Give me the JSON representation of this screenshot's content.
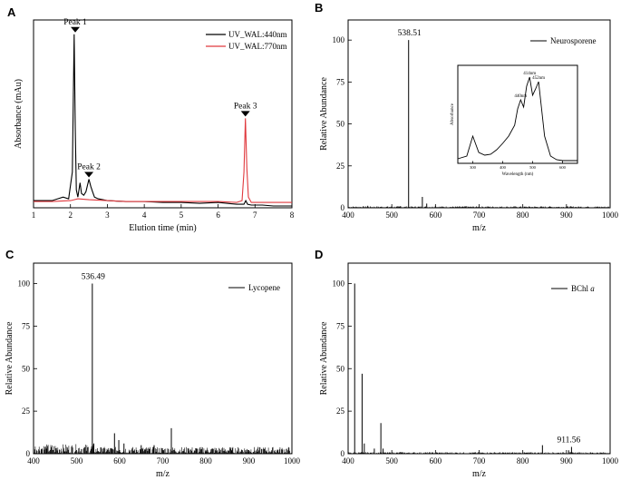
{
  "chart_data": [
    {
      "panel": "A",
      "type": "line",
      "xlabel": "Elution time (min)",
      "ylabel": "Absorbance (mAu)",
      "xlim": [
        1,
        8
      ],
      "x_ticks": [
        1,
        2,
        3,
        4,
        5,
        6,
        7,
        8
      ],
      "y_ticks": [],
      "legend_position": "top-right",
      "series": [
        {
          "name": "UV_WAL:440nm",
          "color": "#000000",
          "x": [
            1.0,
            1.5,
            1.8,
            1.95,
            2.05,
            2.1,
            2.13,
            2.16,
            2.2,
            2.26,
            2.3,
            2.36,
            2.42,
            2.5,
            2.55,
            2.6,
            2.65,
            2.75,
            3.0,
            3.5,
            4.0,
            4.5,
            5.0,
            5.5,
            6.0,
            6.5,
            6.7,
            6.75,
            6.8,
            6.9,
            7.2,
            7.5,
            7.8,
            8.0
          ],
          "y": [
            0.04,
            0.04,
            0.06,
            0.05,
            0.2,
            0.97,
            0.45,
            0.1,
            0.06,
            0.14,
            0.08,
            0.07,
            0.09,
            0.16,
            0.12,
            0.09,
            0.06,
            0.05,
            0.04,
            0.035,
            0.035,
            0.03,
            0.03,
            0.025,
            0.03,
            0.02,
            0.02,
            0.04,
            0.02,
            0.015,
            0.015,
            0.01,
            0.01,
            0.01
          ]
        },
        {
          "name": "UV_WAL:770nm",
          "color": "#e0393e",
          "x": [
            1.0,
            1.5,
            2.0,
            2.1,
            2.2,
            2.5,
            3.0,
            3.5,
            4.0,
            4.5,
            5.0,
            5.5,
            6.0,
            6.5,
            6.65,
            6.7,
            6.74,
            6.78,
            6.82,
            6.9,
            7.2,
            7.5,
            8.0
          ],
          "y": [
            0.035,
            0.035,
            0.04,
            0.045,
            0.05,
            0.045,
            0.04,
            0.035,
            0.035,
            0.035,
            0.035,
            0.035,
            0.035,
            0.03,
            0.04,
            0.2,
            0.5,
            0.22,
            0.06,
            0.03,
            0.03,
            0.03,
            0.03
          ]
        }
      ],
      "annotations": [
        {
          "text": "Peak 1",
          "x": 2.13,
          "y": 0.97
        },
        {
          "text": "Peak 2",
          "x": 2.5,
          "y": 0.16
        },
        {
          "text": "Peak 3",
          "x": 6.74,
          "y": 0.5
        }
      ]
    },
    {
      "panel": "B",
      "type": "bar",
      "xlabel": "m/z",
      "ylabel": "Relative Abundance",
      "xlim": [
        400,
        1000
      ],
      "ylim": [
        0,
        100
      ],
      "x_ticks": [
        400,
        500,
        600,
        700,
        800,
        900,
        1000
      ],
      "y_ticks": [
        0,
        25,
        50,
        75,
        100
      ],
      "legend_position": "top-right",
      "series": [
        {
          "name": "Neurosporene"
        }
      ],
      "peaks": [
        [
          538.51,
          100
        ],
        [
          570,
          6.5
        ],
        [
          580,
          2.5
        ],
        [
          445,
          1.2
        ],
        [
          520,
          1.0
        ],
        [
          600,
          1.2
        ],
        [
          670,
          1.0
        ],
        [
          720,
          0.8
        ],
        [
          860,
          0.6
        ],
        [
          950,
          0.5
        ]
      ],
      "annotations": [
        {
          "text": "538.51",
          "x": 538.51,
          "y": 100
        }
      ],
      "inset": {
        "type": "line",
        "xlabel": "Wavelength (nm)",
        "ylabel": "Absorbance",
        "xlim": [
          250,
          650
        ],
        "x_ticks": [
          300,
          400,
          500,
          600
        ],
        "x": [
          250,
          280,
          300,
          320,
          340,
          360,
          380,
          400,
          420,
          440,
          450,
          460,
          470,
          480,
          490,
          500,
          510,
          520,
          530,
          540,
          560,
          580,
          600,
          620,
          650
        ],
        "y": [
          0.05,
          0.08,
          0.3,
          0.12,
          0.09,
          0.1,
          0.15,
          0.22,
          0.3,
          0.42,
          0.6,
          0.7,
          0.62,
          0.85,
          0.95,
          0.75,
          0.82,
          0.9,
          0.6,
          0.3,
          0.08,
          0.04,
          0.03,
          0.03,
          0.03
        ],
        "annotations": [
          {
            "text": "414nm",
            "x": 490,
            "y": 0.95
          },
          {
            "text": "440nm",
            "x": 460,
            "y": 0.7
          },
          {
            "text": "452nm",
            "x": 520,
            "y": 0.9
          }
        ]
      }
    },
    {
      "panel": "C",
      "type": "bar",
      "xlabel": "m/z",
      "ylabel": "Relative Abundance",
      "xlim": [
        400,
        1000
      ],
      "ylim": [
        0,
        100
      ],
      "x_ticks": [
        400,
        500,
        600,
        700,
        800,
        900,
        1000
      ],
      "y_ticks": [
        0,
        25,
        50,
        75,
        100
      ],
      "legend_position": "top-right",
      "series": [
        {
          "name": "Lycopene"
        }
      ],
      "peaks": [
        [
          536.49,
          100
        ],
        [
          720,
          15
        ],
        [
          588,
          12
        ],
        [
          598,
          8
        ],
        [
          610,
          6
        ],
        [
          650,
          5
        ],
        [
          680,
          5
        ],
        [
          540,
          6
        ],
        [
          430,
          3
        ],
        [
          470,
          2.5
        ],
        [
          560,
          3
        ],
        [
          760,
          3
        ],
        [
          860,
          2
        ],
        [
          900,
          2
        ],
        [
          940,
          1.5
        ]
      ],
      "annotations": [
        {
          "text": "536.49",
          "x": 536.49,
          "y": 100
        }
      ]
    },
    {
      "panel": "D",
      "type": "bar",
      "xlabel": "m/z",
      "ylabel": "Relative Abundance",
      "xlim": [
        400,
        1000
      ],
      "ylim": [
        0,
        100
      ],
      "x_ticks": [
        400,
        500,
        600,
        700,
        800,
        900,
        1000
      ],
      "y_ticks": [
        0,
        25,
        50,
        75,
        100
      ],
      "legend_position": "top-right",
      "series": [
        {
          "name": "BChl a"
        }
      ],
      "peaks": [
        [
          415,
          100
        ],
        [
          432,
          47
        ],
        [
          437,
          6
        ],
        [
          460,
          3
        ],
        [
          475,
          18
        ],
        [
          480,
          3
        ],
        [
          520,
          1
        ],
        [
          845,
          5
        ],
        [
          905,
          2
        ],
        [
          911.56,
          4
        ],
        [
          960,
          0.5
        ]
      ],
      "annotations": [
        {
          "text": "911.56",
          "x": 911.56,
          "y": 4
        }
      ]
    }
  ],
  "panel_letters": [
    "A",
    "B",
    "C",
    "D"
  ],
  "legend_a_1": "UV_WAL:440nm",
  "legend_a_2": "UV_WAL:770nm",
  "legend_b": "Neurosporene",
  "legend_c": "Lycopene",
  "legend_d_prefix": "BChl",
  "legend_d_italic": "a"
}
